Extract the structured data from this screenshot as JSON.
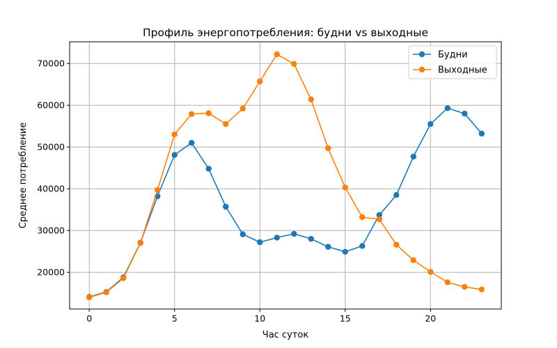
{
  "chart_data": {
    "type": "line",
    "title": "Профиль энергопотребления: будни vs выходные",
    "xlabel": "Час суток",
    "ylabel": "Среднее потребление",
    "xlim": [
      -1.15,
      24.15
    ],
    "ylim": [
      11200,
      75200
    ],
    "x_ticks": [
      0,
      5,
      10,
      15,
      20
    ],
    "y_ticks": [
      20000,
      30000,
      40000,
      50000,
      60000,
      70000
    ],
    "grid": true,
    "legend": "top-right",
    "x": [
      0,
      1,
      2,
      3,
      4,
      5,
      6,
      7,
      8,
      9,
      10,
      11,
      12,
      13,
      14,
      15,
      16,
      17,
      18,
      19,
      20,
      21,
      22,
      23
    ],
    "series": [
      {
        "name": "Будни",
        "color": "#1f77b4",
        "values": [
          14100,
          15300,
          18800,
          27100,
          38200,
          48100,
          51000,
          44800,
          35700,
          29100,
          27200,
          28300,
          29200,
          28000,
          26100,
          24900,
          26300,
          33700,
          38500,
          47700,
          55500,
          59300,
          58000,
          53200
        ]
      },
      {
        "name": "Выходные",
        "color": "#ff7f0e",
        "values": [
          14000,
          15200,
          18600,
          27000,
          39700,
          53000,
          57900,
          58100,
          55500,
          59200,
          65700,
          72200,
          69900,
          61400,
          49700,
          40300,
          33200,
          32700,
          26600,
          22900,
          20100,
          17600,
          16500,
          15900
        ]
      }
    ]
  }
}
